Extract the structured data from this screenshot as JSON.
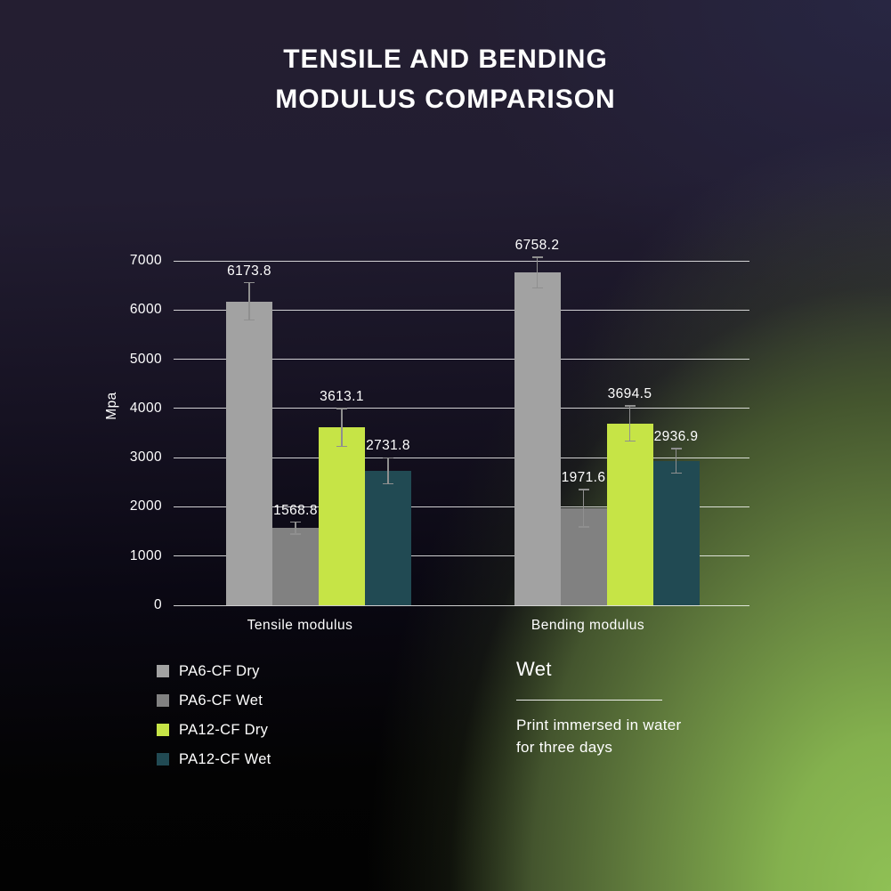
{
  "title": "TENSILE AND BENDING MODULUS COMPARISON",
  "chart_data": {
    "type": "bar",
    "title": "TENSILE AND BENDING MODULUS COMPARISON",
    "ylabel": "Mpa",
    "xlabel": "",
    "ylim": [
      0,
      7000
    ],
    "yticks": [
      0,
      1000,
      2000,
      3000,
      4000,
      5000,
      6000,
      7000
    ],
    "grid": true,
    "error_bars": true,
    "legend_position": "bottom-left",
    "categories": [
      "Tensile modulus",
      "Bending modulus"
    ],
    "series": [
      {
        "name": "PA6-CF Dry",
        "color": "#a2a2a2",
        "values": [
          6173.8,
          6758.2
        ],
        "errors": [
          380,
          310
        ]
      },
      {
        "name": "PA6-CF Wet",
        "color": "#818181",
        "values": [
          1568.8,
          1971.6
        ],
        "errors": [
          120,
          380
        ]
      },
      {
        "name": "PA12-CF Dry",
        "color": "#c6e446",
        "values": [
          3613.1,
          3694.5
        ],
        "errors": [
          380,
          360
        ]
      },
      {
        "name": "PA12-CF Wet",
        "color": "#214a53",
        "values": [
          2731.8,
          2936.9
        ],
        "errors": [
          265,
          250
        ]
      }
    ]
  },
  "annotation": {
    "heading": "Wet",
    "body": "Print immersed in water\nfor three days"
  },
  "colors": {
    "background_top_left": "#241e31",
    "background_top_right": "#282744",
    "background_bottom_left": "#020202",
    "background_bottom_right": "#8fc055",
    "gridline": "rgba(255,255,255,0.8)",
    "error_bar": "#8f8f8f",
    "text": "#ffffff"
  }
}
